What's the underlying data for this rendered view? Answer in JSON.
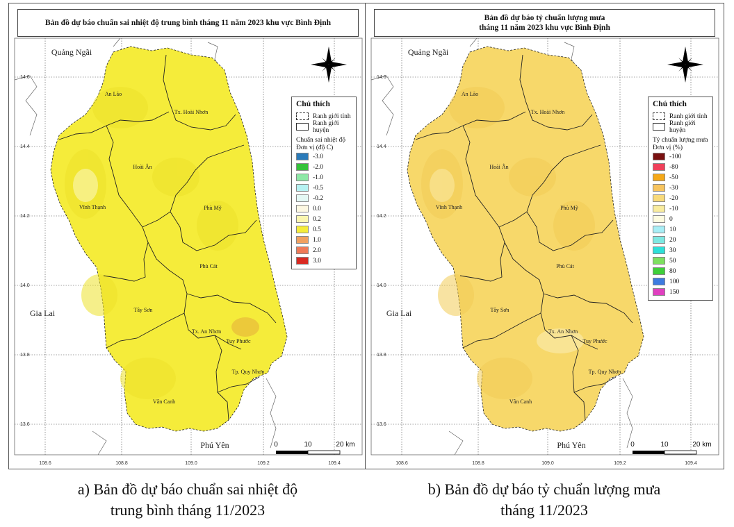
{
  "panels": [
    {
      "title_line1": "Bản đồ dự báo chuẩn sai nhiệt độ trung bình tháng 11 năm 2023 khu vực Bình Định",
      "title_line2": "",
      "fill": "#f5ec3a",
      "fill_dark": "#ede22a",
      "hot_spot": "#e6b23a",
      "legend": {
        "title": "Chú thích",
        "boundary_province": "Ranh giới tỉnh",
        "boundary_district": "Ranh giới huyện",
        "scale_title": "Chuẩn sai nhiệt độ",
        "unit": "Đơn vị (độ C)",
        "classes": [
          {
            "label": "-3.0",
            "color": "#2b7bba"
          },
          {
            "label": "-2.0",
            "color": "#35c23a"
          },
          {
            "label": "-1.0",
            "color": "#8ee8a6"
          },
          {
            "label": "-0.5",
            "color": "#b6f2f2"
          },
          {
            "label": "-0.2",
            "color": "#e4f8f4"
          },
          {
            "label": "0.0",
            "color": "#fdf8e2"
          },
          {
            "label": "0.2",
            "color": "#fbf6b0"
          },
          {
            "label": "0.5",
            "color": "#f5ec3a"
          },
          {
            "label": "1.0",
            "color": "#f0a060"
          },
          {
            "label": "2.0",
            "color": "#ef7a58"
          },
          {
            "label": "3.0",
            "color": "#d92a22"
          }
        ]
      },
      "caption_line1": "a) Bản đồ dự báo chuẩn sai nhiệt độ",
      "caption_line2": "trung bình tháng 11/2023"
    },
    {
      "title_line1": "Bản đồ dự báo tỷ chuẩn lượng mưa",
      "title_line2": "tháng 11 năm 2023 khu vực Bình Định",
      "fill": "#f7d86a",
      "fill_dark": "#f2cc55",
      "hot_spot": "#f9e9a6",
      "legend": {
        "title": "Chú thích",
        "boundary_province": "Ranh giới tỉnh",
        "boundary_district": "Ranh giới huyện",
        "scale_title": "Tỷ chuẩn lượng mưa",
        "unit": "Đơn vị (%)",
        "classes": [
          {
            "label": "-100",
            "color": "#7a1010"
          },
          {
            "label": "-80",
            "color": "#f0405a"
          },
          {
            "label": "-50",
            "color": "#f5a818"
          },
          {
            "label": "-30",
            "color": "#f7c45e"
          },
          {
            "label": "-20",
            "color": "#f8da7a"
          },
          {
            "label": "-10",
            "color": "#f9ec9e"
          },
          {
            "label": "0",
            "color": "#fdfbe0"
          },
          {
            "label": "10",
            "color": "#a8eef6"
          },
          {
            "label": "20",
            "color": "#7fe8e2"
          },
          {
            "label": "30",
            "color": "#2ee0d8"
          },
          {
            "label": "50",
            "color": "#7ee060"
          },
          {
            "label": "80",
            "color": "#3fcf3a"
          },
          {
            "label": "100",
            "color": "#3d7be0"
          },
          {
            "label": "150",
            "color": "#e040c0"
          }
        ]
      },
      "caption_line1": "b) Bản đồ dự báo tỷ chuẩn lượng mưa",
      "caption_line2": "tháng 11/2023"
    }
  ],
  "map": {
    "neighbors": [
      "Quảng Ngãi",
      "Gia Lai",
      "Phú Yên"
    ],
    "districts": [
      "An Lão",
      "Tx. Hoài Nhơn",
      "Hoài Ân",
      "Vĩnh Thạnh",
      "Phù Mỹ",
      "Phù Cát",
      "Tây Sơn",
      "Tx. An Nhơn",
      "Tuy Phước",
      "Tp. Quy Nhơn",
      "Vân Canh"
    ],
    "lat_ticks": [
      "14.6",
      "14.4",
      "14.2",
      "14.0",
      "13.8",
      "13.6"
    ],
    "lon_ticks": [
      "108.6",
      "108.8",
      "109.0",
      "109.2",
      "109.4"
    ],
    "scale_labels": [
      "0",
      "10",
      "20 km"
    ]
  }
}
